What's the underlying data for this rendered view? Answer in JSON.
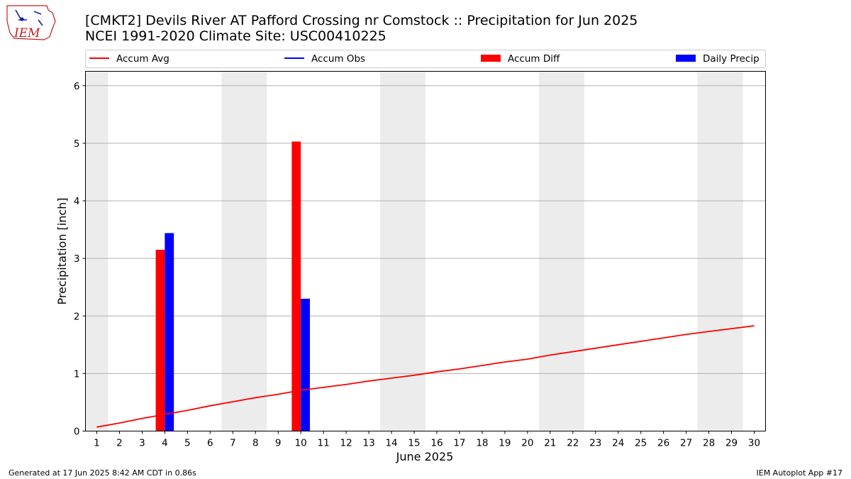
{
  "title": {
    "line1": "[CMKT2] Devils River  AT Pafford Crossing nr Comstock :: Precipitation for Jun 2025",
    "line2": "NCEI 1991-2020 Climate Site: USC00410225"
  },
  "logo": {
    "text": "IEM"
  },
  "legend": [
    {
      "label": "Accum Avg",
      "kind": "line",
      "color": "#ff0000"
    },
    {
      "label": "Accum Obs",
      "kind": "line",
      "color": "#0000ff"
    },
    {
      "label": "Accum Diff",
      "kind": "bar",
      "color": "#ff0000"
    },
    {
      "label": "Daily Precip",
      "kind": "bar",
      "color": "#0000ff"
    }
  ],
  "footer": {
    "left": "Generated at 17 Jun 2025 8:42 AM CDT in 0.86s",
    "right": "IEM Autoplot App #17"
  },
  "colors": {
    "weekend_shade": "#ececec",
    "grid": "#b0b0b0"
  },
  "chart_data": {
    "type": "bar",
    "xlabel": "June 2025",
    "ylabel": "Precipitation [inch]",
    "xlim": [
      0.5,
      30.5
    ],
    "ylim": [
      0,
      6.25
    ],
    "yticks": [
      0,
      1,
      2,
      3,
      4,
      5,
      6
    ],
    "xticks": [
      1,
      2,
      3,
      4,
      5,
      6,
      7,
      8,
      9,
      10,
      11,
      12,
      13,
      14,
      15,
      16,
      17,
      18,
      19,
      20,
      21,
      22,
      23,
      24,
      25,
      26,
      27,
      28,
      29,
      30
    ],
    "grid": "horizontal",
    "weekend_bands": [
      [
        0.5,
        1.5
      ],
      [
        6.5,
        8.5
      ],
      [
        13.5,
        15.5
      ],
      [
        20.5,
        22.5
      ],
      [
        27.5,
        29.5
      ]
    ],
    "series": [
      {
        "name": "Accum Avg",
        "kind": "line",
        "color": "#ff0000",
        "x": [
          1,
          2,
          3,
          4,
          5,
          6,
          7,
          8,
          9,
          10,
          11,
          12,
          13,
          14,
          15,
          16,
          17,
          18,
          19,
          20,
          21,
          22,
          23,
          24,
          25,
          26,
          27,
          28,
          29,
          30
        ],
        "values": [
          0.07,
          0.14,
          0.22,
          0.29,
          0.36,
          0.44,
          0.51,
          0.58,
          0.64,
          0.71,
          0.76,
          0.81,
          0.87,
          0.92,
          0.97,
          1.03,
          1.08,
          1.14,
          1.2,
          1.25,
          1.32,
          1.38,
          1.44,
          1.5,
          1.56,
          1.62,
          1.68,
          1.73,
          1.78,
          1.83
        ]
      },
      {
        "name": "Accum Obs",
        "kind": "line",
        "color": "#0000ff",
        "x": [],
        "values": []
      },
      {
        "name": "Accum Diff",
        "kind": "bar",
        "color": "#ff0000",
        "offset": -0.2,
        "x": [
          4,
          10
        ],
        "values": [
          3.15,
          5.03
        ]
      },
      {
        "name": "Daily Precip",
        "kind": "bar",
        "color": "#0000ff",
        "offset": 0.2,
        "x": [
          4,
          10
        ],
        "values": [
          3.44,
          2.3
        ]
      }
    ]
  }
}
